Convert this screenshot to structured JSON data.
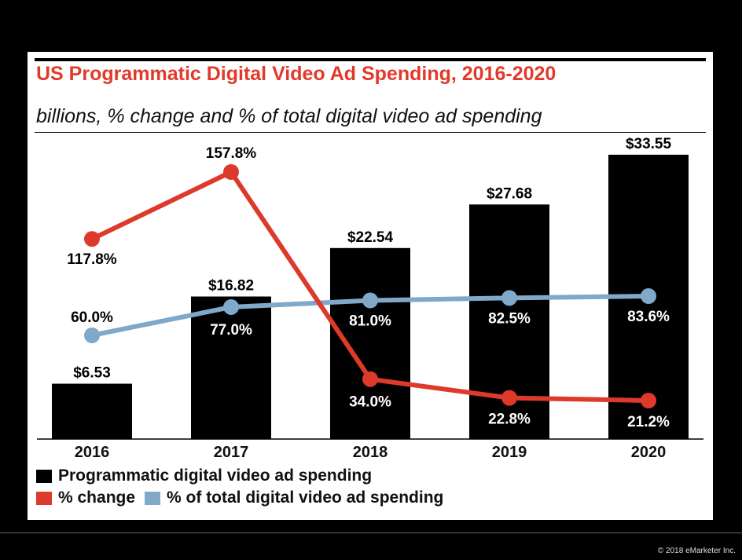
{
  "header": {
    "title": "US Programmatic Digital Video Ad Spending, 2016-2020",
    "subtitle": "billions, % change and % of total digital video ad spending"
  },
  "footer": {
    "copyright": "© 2018 eMarketer Inc."
  },
  "colors": {
    "title": "#e2392b",
    "bars": "#000000",
    "change_line": "#dd3a2c",
    "share_line": "#7fa8c9"
  },
  "chart_data": {
    "type": "bar",
    "categories": [
      "2016",
      "2017",
      "2018",
      "2019",
      "2020"
    ],
    "series": [
      {
        "name": "Programmatic digital video ad spending",
        "type": "bar",
        "values": [
          6.53,
          16.82,
          22.54,
          27.68,
          33.55
        ],
        "labels": [
          "$6.53",
          "$16.82",
          "$22.54",
          "$27.68",
          "$33.55"
        ]
      },
      {
        "name": "% change",
        "type": "line",
        "values": [
          117.8,
          157.8,
          34.0,
          22.8,
          21.2
        ],
        "labels": [
          "117.8%",
          "157.8%",
          "34.0%",
          "22.8%",
          "21.2%"
        ]
      },
      {
        "name": "% of total digital video ad spending",
        "type": "line",
        "values": [
          60.0,
          77.0,
          81.0,
          82.5,
          83.6
        ],
        "labels": [
          "60.0%",
          "77.0%",
          "81.0%",
          "82.5%",
          "83.6%"
        ]
      }
    ],
    "grid": false,
    "legend_position": "bottom-left"
  }
}
